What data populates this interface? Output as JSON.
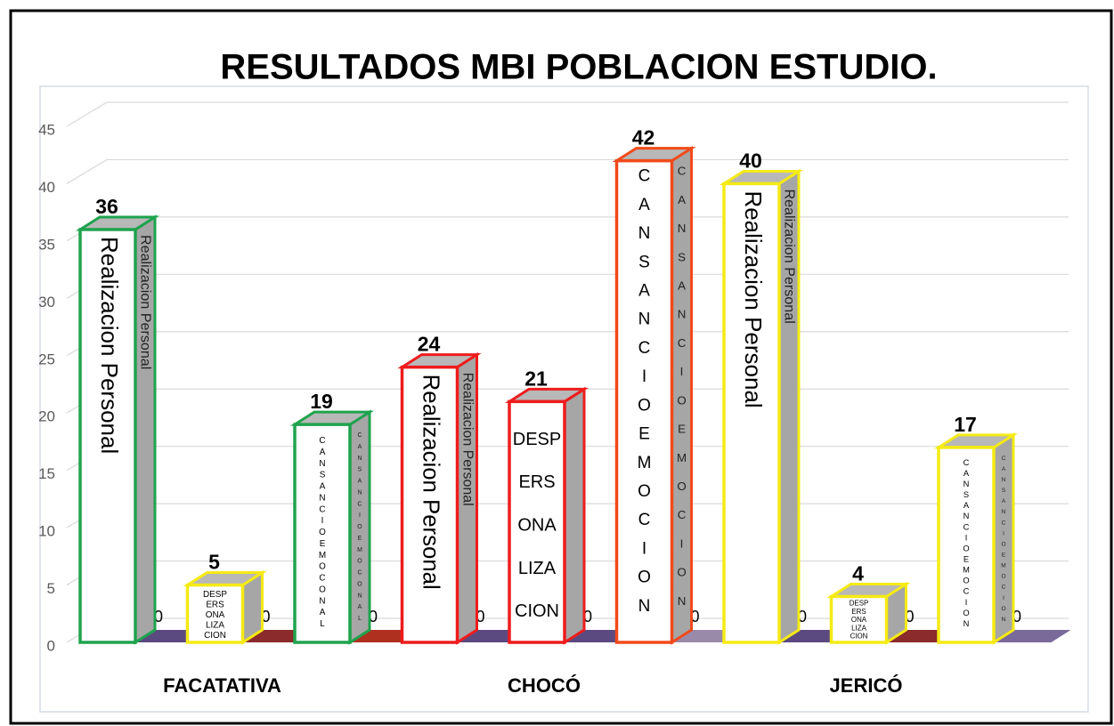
{
  "chart_data": {
    "type": "bar3d",
    "title": "RESULTADOS MBI POBLACION ESTUDIO.",
    "categories": [
      "FACATATIVA",
      "CHOCÓ",
      "JERICÓ"
    ],
    "ylim": [
      0,
      45
    ],
    "yticks": [
      0,
      5,
      10,
      15,
      20,
      25,
      30,
      35,
      40,
      45
    ],
    "grid": true,
    "bars": [
      {
        "text": "Realizacion Personal",
        "layout": "rotated",
        "value": 36,
        "color": "#1ea34d",
        "floor_value": 0,
        "floor_color": "#5b4a80"
      },
      {
        "text": "DESP ERS ONA LIZA CION",
        "layout": "lines",
        "value": 5,
        "color": "#f5ea14",
        "floor_value": 0,
        "floor_color": "#8b2b2b"
      },
      {
        "text": "CANSANCIOEMOCONAL",
        "layout": "stacked",
        "value": 19,
        "color": "#1ea34d",
        "floor_value": 0,
        "floor_color": "#b03020"
      },
      {
        "text": "Realizacion Personal",
        "layout": "rotated",
        "value": 24,
        "color": "#ee1c1c",
        "floor_value": 0,
        "floor_color": "#5b4a80"
      },
      {
        "text": "DESP ERS ONA LIZA CION",
        "layout": "lines",
        "value": 21,
        "color": "#ee1c1c",
        "floor_value": 0,
        "floor_color": "#5b4a80"
      },
      {
        "text": "CANSANCIOEMOCION",
        "layout": "stacked",
        "value": 42,
        "color": "#f24a1a",
        "floor_value": 0,
        "floor_color": "#9a8aaa"
      },
      {
        "text": "Realizacion Personal",
        "layout": "rotated",
        "value": 40,
        "color": "#f5ea14",
        "floor_value": 0,
        "floor_color": "#5b4a80"
      },
      {
        "text": "DESP ERS ONA LIZA CION",
        "layout": "lines",
        "value": 4,
        "color": "#f5ea14",
        "floor_value": 0,
        "floor_color": "#8b2b2b"
      },
      {
        "text": "CANSANCIOEMOCION",
        "layout": "stacked",
        "value": 17,
        "color": "#f5ea14",
        "floor_value": 0,
        "floor_color": "#7a6a9a"
      }
    ]
  }
}
